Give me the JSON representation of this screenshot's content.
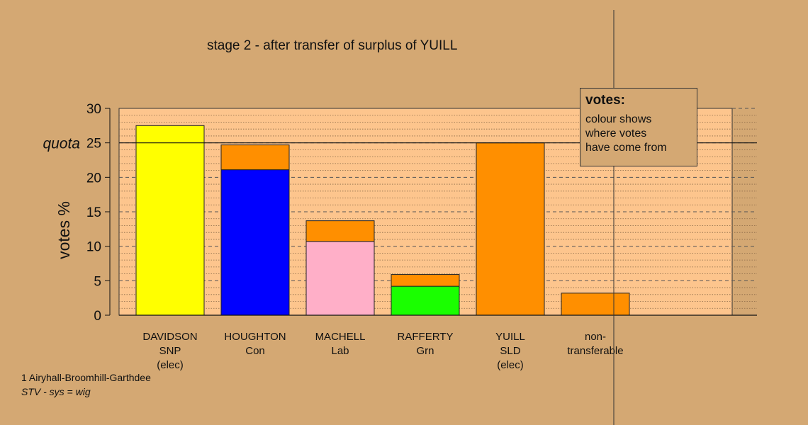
{
  "title": "stage 2 - after transfer of surplus of YUILL",
  "footer": {
    "ward": "1 Airyhall-Broomhill-Garthdee",
    "system": "STV - sys = wig"
  },
  "legend": {
    "title": "votes:",
    "lines": [
      "colour shows",
      "where votes",
      "have come from"
    ]
  },
  "colors": {
    "background": "#d4a873",
    "plot_area": "#fdc58d",
    "transfer_from_yuill": "#ff8f00",
    "snp": "#ffff00",
    "con": "#0000ff",
    "lab": "#ffafc8",
    "grn": "#1aff00",
    "sld": "#ff8f00"
  },
  "chart_data": {
    "type": "bar",
    "stacked": true,
    "title": "stage 2 - after transfer of surplus of YUILL",
    "ylabel": "votes %",
    "ylim": [
      0,
      30
    ],
    "yticks": [
      0,
      5,
      10,
      15,
      20,
      25,
      30
    ],
    "quota": 25,
    "quota_label": "quota",
    "grid": true,
    "legend_placement": "top-right",
    "categories": [
      {
        "lines": [
          "DAVIDSON",
          "SNP",
          "(elec)"
        ]
      },
      {
        "lines": [
          "HOUGHTON",
          "Con"
        ]
      },
      {
        "lines": [
          "MACHELL",
          "Lab"
        ]
      },
      {
        "lines": [
          "RAFFERTY",
          "Grn"
        ]
      },
      {
        "lines": [
          "YUILL",
          "SLD",
          "(elec)"
        ]
      },
      {
        "lines": [
          "non-",
          "transferable"
        ]
      }
    ],
    "bars": [
      {
        "segments": [
          {
            "value": 27.5,
            "color": "#ffff00"
          }
        ]
      },
      {
        "segments": [
          {
            "value": 21.1,
            "color": "#0000ff"
          },
          {
            "value": 3.6,
            "color": "#ff8f00"
          }
        ]
      },
      {
        "segments": [
          {
            "value": 10.7,
            "color": "#ffafc8"
          },
          {
            "value": 3.0,
            "color": "#ff8f00"
          }
        ]
      },
      {
        "segments": [
          {
            "value": 4.2,
            "color": "#1aff00"
          },
          {
            "value": 1.7,
            "color": "#ff8f00"
          }
        ]
      },
      {
        "segments": [
          {
            "value": 25.0,
            "color": "#ff8f00"
          }
        ]
      },
      {
        "segments": [
          {
            "value": 3.2,
            "color": "#ff8f00"
          }
        ]
      }
    ]
  }
}
